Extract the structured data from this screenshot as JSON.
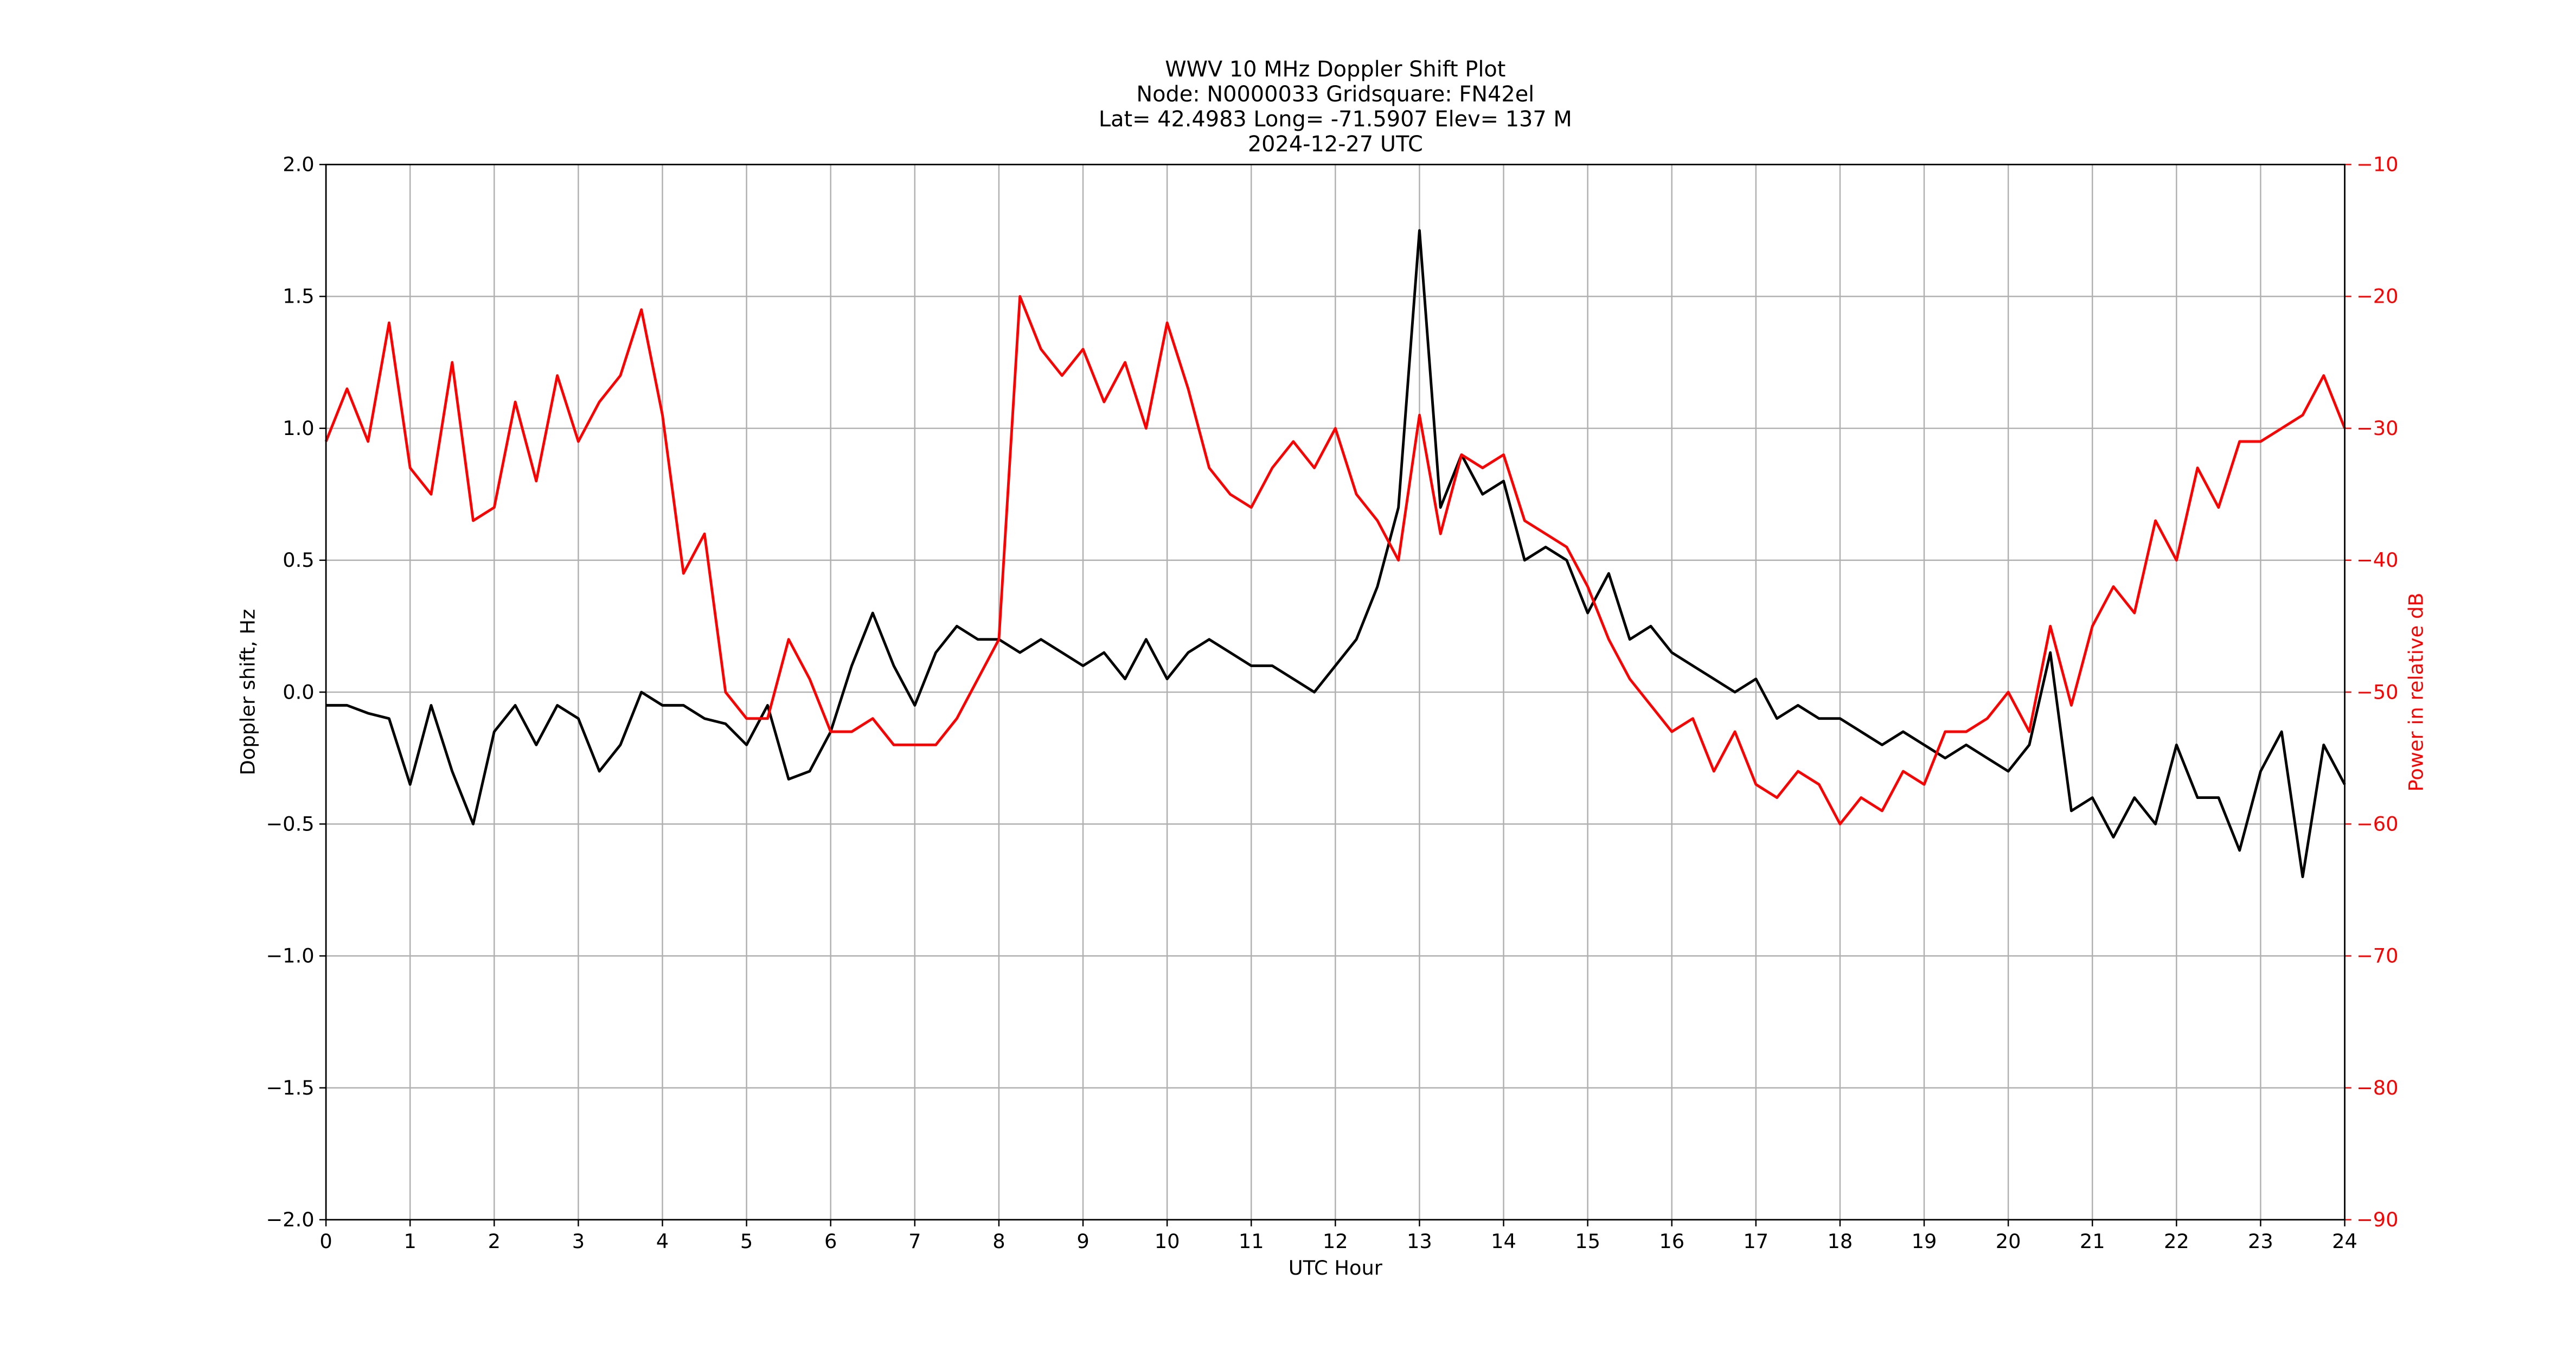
{
  "chart_data": {
    "type": "line",
    "title": [
      "WWV 10 MHz Doppler Shift Plot",
      "Node:  N0000033     Gridsquare:  FN42el",
      "Lat= 42.4983    Long= -71.5907    Elev= 137 M",
      "2024-12-27  UTC"
    ],
    "x_label": "UTC Hour",
    "y_label": "Doppler shift, Hz",
    "y2_label": "Power in relative dB",
    "y2_color": "red",
    "grid": true,
    "xlim": [
      0,
      24
    ],
    "xticks": [
      0,
      1,
      2,
      3,
      4,
      5,
      6,
      7,
      8,
      9,
      10,
      11,
      12,
      13,
      14,
      15,
      16,
      17,
      18,
      19,
      20,
      21,
      22,
      23,
      24
    ],
    "ylim": [
      -2.0,
      2.0
    ],
    "yticks": [
      {
        "value": -2.0,
        "label": "−2.0"
      },
      {
        "value": -1.5,
        "label": "−1.5"
      },
      {
        "value": -1.0,
        "label": "−1.0"
      },
      {
        "value": -0.5,
        "label": "−0.5"
      },
      {
        "value": 0,
        "label": "0.0"
      },
      {
        "value": 0.5,
        "label": "0.5"
      },
      {
        "value": 1.0,
        "label": "1.0"
      },
      {
        "value": 1.5,
        "label": "1.5"
      },
      {
        "value": 2.0,
        "label": "2.0"
      }
    ],
    "y2lim": [
      -90,
      -10
    ],
    "y2ticks": [
      {
        "value": -90,
        "label": "−90"
      },
      {
        "value": -80,
        "label": "−80"
      },
      {
        "value": -70,
        "label": "−70"
      },
      {
        "value": -60,
        "label": "−60"
      },
      {
        "value": -50,
        "label": "−50"
      },
      {
        "value": -40,
        "label": "−40"
      },
      {
        "value": -30,
        "label": "−30"
      },
      {
        "value": -20,
        "label": "−20"
      },
      {
        "value": -10,
        "label": "−10"
      }
    ],
    "x": [
      0,
      0.25,
      0.5,
      0.75,
      1,
      1.25,
      1.5,
      1.75,
      2,
      2.25,
      2.5,
      2.75,
      3,
      3.25,
      3.5,
      3.75,
      4,
      4.25,
      4.5,
      4.75,
      5,
      5.25,
      5.5,
      5.75,
      6,
      6.25,
      6.5,
      6.75,
      7,
      7.25,
      7.5,
      7.75,
      8,
      8.25,
      8.5,
      8.75,
      9,
      9.25,
      9.5,
      9.75,
      10,
      10.25,
      10.5,
      10.75,
      11,
      11.25,
      11.5,
      11.75,
      12,
      12.25,
      12.5,
      12.75,
      13,
      13.25,
      13.5,
      13.75,
      14,
      14.25,
      14.5,
      14.75,
      15,
      15.25,
      15.5,
      15.75,
      16,
      16.25,
      16.5,
      16.75,
      17,
      17.25,
      17.5,
      17.75,
      18,
      18.25,
      18.5,
      18.75,
      19,
      19.25,
      19.5,
      19.75,
      20,
      20.25,
      20.5,
      20.75,
      21,
      21.25,
      21.5,
      21.75,
      22,
      22.25,
      22.5,
      22.75,
      23,
      23.25,
      23.5,
      23.75,
      24
    ],
    "series": [
      {
        "color": "black",
        "values": [
          -0.05,
          -0.05,
          -0.08,
          -0.1,
          -0.35,
          -0.05,
          -0.3,
          -0.5,
          -0.15,
          -0.05,
          -0.2,
          -0.05,
          -0.1,
          -0.3,
          -0.2,
          0.0,
          -0.05,
          -0.05,
          -0.1,
          -0.12,
          -0.2,
          -0.05,
          -0.33,
          -0.3,
          -0.15,
          0.1,
          0.3,
          0.1,
          -0.05,
          0.15,
          0.25,
          0.2,
          0.2,
          0.15,
          0.2,
          0.15,
          0.1,
          0.15,
          0.05,
          0.2,
          0.05,
          0.15,
          0.2,
          0.15,
          0.1,
          0.1,
          0.05,
          0.0,
          0.1,
          0.2,
          0.4,
          0.7,
          1.75,
          0.7,
          0.9,
          0.75,
          0.8,
          0.5,
          0.55,
          0.5,
          0.3,
          0.45,
          0.2,
          0.25,
          0.15,
          0.1,
          0.05,
          0.0,
          0.05,
          -0.1,
          -0.05,
          -0.1,
          -0.1,
          -0.15,
          -0.2,
          -0.15,
          -0.2,
          -0.25,
          -0.2,
          -0.25,
          -0.3,
          -0.2,
          0.15,
          -0.45,
          -0.4,
          -0.55,
          -0.4,
          -0.5,
          -0.2,
          -0.4,
          -0.4,
          -0.6,
          -0.3,
          -0.15,
          -0.7,
          -0.2,
          -0.35
        ]
      },
      {
        "color": "red",
        "axis": "y2",
        "values": [
          -31,
          -27,
          -31,
          -22,
          -33,
          -35,
          -25,
          -37,
          -36,
          -28,
          -34,
          -26,
          -31,
          -28,
          -26,
          -21,
          -29,
          -41,
          -38,
          -50,
          -52,
          -52,
          -46,
          -49,
          -53,
          -53,
          -52,
          -54,
          -54,
          -54,
          -52,
          -49,
          -46,
          -20,
          -24,
          -26,
          -24,
          -28,
          -25,
          -30,
          -22,
          -27,
          -33,
          -35,
          -36,
          -33,
          -31,
          -33,
          -30,
          -35,
          -37,
          -40,
          -29,
          -38,
          -32,
          -33,
          -32,
          -37,
          -38,
          -39,
          -42,
          -46,
          -49,
          -51,
          -53,
          -52,
          -56,
          -53,
          -57,
          -58,
          -56,
          -57,
          -60,
          -58,
          -59,
          -56,
          -57,
          -53,
          -53,
          -52,
          -50,
          -53,
          -45,
          -51,
          -45,
          -42,
          -44,
          -37,
          -40,
          -33,
          -36,
          -31,
          -31,
          -30,
          -29,
          -26,
          -30
        ]
      }
    ]
  }
}
